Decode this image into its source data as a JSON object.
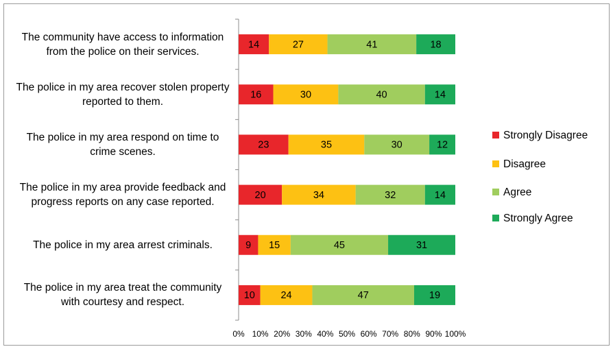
{
  "chart_data": {
    "type": "stacked-bar-horizontal",
    "categories": [
      "The community have access to information from the police on their services.",
      "The police in my area recover stolen property reported to them.",
      "The police in my area respond on time to crime scenes.",
      "The police in my area provide feedback and progress reports on any case reported.",
      "The police in my area arrest criminals.",
      "The police in my area treat the community with courtesy and respect."
    ],
    "series": [
      {
        "name": "Strongly Disagree",
        "color": "#e8262b",
        "values": [
          14,
          16,
          23,
          20,
          9,
          10
        ]
      },
      {
        "name": "Disagree",
        "color": "#fdc113",
        "values": [
          27,
          30,
          35,
          34,
          15,
          24
        ]
      },
      {
        "name": "Agree",
        "color": "#a0cd5e",
        "values": [
          41,
          40,
          30,
          32,
          45,
          47
        ]
      },
      {
        "name": "Strongly Agree",
        "color": "#1daa59",
        "values": [
          18,
          14,
          12,
          14,
          31,
          19
        ]
      }
    ],
    "xlim": [
      0,
      100
    ],
    "xticks": [
      {
        "value": 0,
        "label": "0%"
      },
      {
        "value": 10,
        "label": "10%"
      },
      {
        "value": 20,
        "label": "20%"
      },
      {
        "value": 30,
        "label": "30%"
      },
      {
        "value": 40,
        "label": "40%"
      },
      {
        "value": 50,
        "label": "50%"
      },
      {
        "value": 60,
        "label": "60%"
      },
      {
        "value": 70,
        "label": "70%"
      },
      {
        "value": 80,
        "label": "80%"
      },
      {
        "value": 90,
        "label": "90%"
      },
      {
        "value": 100,
        "label": "100%"
      }
    ],
    "legend": "right"
  }
}
